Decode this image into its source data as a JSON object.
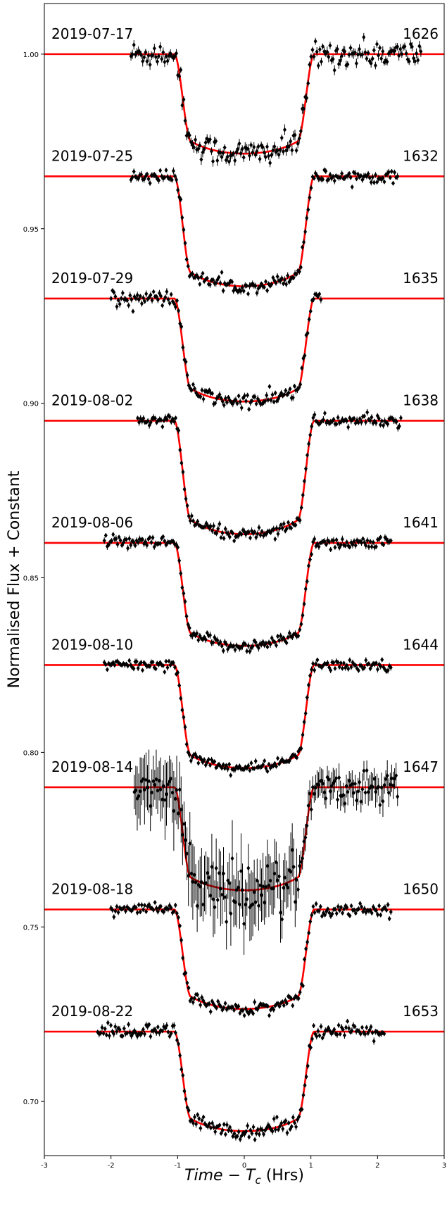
{
  "chart_data": {
    "type": "scatter",
    "title": "",
    "xlabel": {
      "italic": "Time − T",
      "subscript": "c",
      "rest": " (Hrs)"
    },
    "ylabel": "Normalised Flux + Constant",
    "xlim": [
      -3,
      3
    ],
    "ylim": [
      0.6845,
      1.0145
    ],
    "xticks": [
      -3,
      -2,
      -1,
      0,
      1,
      2,
      3
    ],
    "yticks": [
      0.7,
      0.75,
      0.8,
      0.85,
      0.9,
      0.95,
      1.0
    ],
    "ytick_labels": [
      "0.70",
      "0.75",
      "0.80",
      "0.85",
      "0.90",
      "0.95",
      "1.00"
    ],
    "grid": false,
    "colors": {
      "model": "#ff0000",
      "data": "#000000",
      "frame": "#000000"
    },
    "model_shape": {
      "t1": 1.05,
      "t2": 0.8,
      "limb_darkening": 0.35
    },
    "transits": [
      {
        "date": "2019-07-17",
        "epoch": "1626",
        "baseline": 1.0,
        "depth": 0.0285,
        "x_start": -1.7,
        "x_end": 2.65,
        "error": 0.0012,
        "scatter": 0.0019
      },
      {
        "date": "2019-07-25",
        "epoch": "1632",
        "baseline": 0.965,
        "depth": 0.0315,
        "x_start": -1.7,
        "x_end": 2.3,
        "error": 0.0008,
        "scatter": 0.0009
      },
      {
        "date": "2019-07-29",
        "epoch": "1635",
        "baseline": 0.93,
        "depth": 0.0295,
        "x_start": -2.0,
        "x_end": 1.15,
        "error": 0.0008,
        "scatter": 0.0011
      },
      {
        "date": "2019-08-02",
        "epoch": "1638",
        "baseline": 0.895,
        "depth": 0.0325,
        "x_start": -1.6,
        "x_end": 2.35,
        "error": 0.0008,
        "scatter": 0.0009
      },
      {
        "date": "2019-08-06",
        "epoch": "1641",
        "baseline": 0.86,
        "depth": 0.0295,
        "x_start": -2.1,
        "x_end": 2.2,
        "error": 0.0008,
        "scatter": 0.0009
      },
      {
        "date": "2019-08-10",
        "epoch": "1644",
        "baseline": 0.825,
        "depth": 0.0295,
        "x_start": -2.1,
        "x_end": 2.2,
        "error": 0.0007,
        "scatter": 0.0008
      },
      {
        "date": "2019-08-14",
        "epoch": "1647",
        "baseline": 0.79,
        "depth": 0.0295,
        "x_start": -1.65,
        "x_end": 2.3,
        "error": 0.0035,
        "scatter": 0.0022
      },
      {
        "date": "2019-08-18",
        "epoch": "1650",
        "baseline": 0.755,
        "depth": 0.0285,
        "x_start": -2.0,
        "x_end": 2.2,
        "error": 0.0007,
        "scatter": 0.0009
      },
      {
        "date": "2019-08-22",
        "epoch": "1653",
        "baseline": 0.72,
        "depth": 0.0285,
        "x_start": -2.2,
        "x_end": 2.1,
        "error": 0.0008,
        "scatter": 0.0011
      }
    ]
  }
}
